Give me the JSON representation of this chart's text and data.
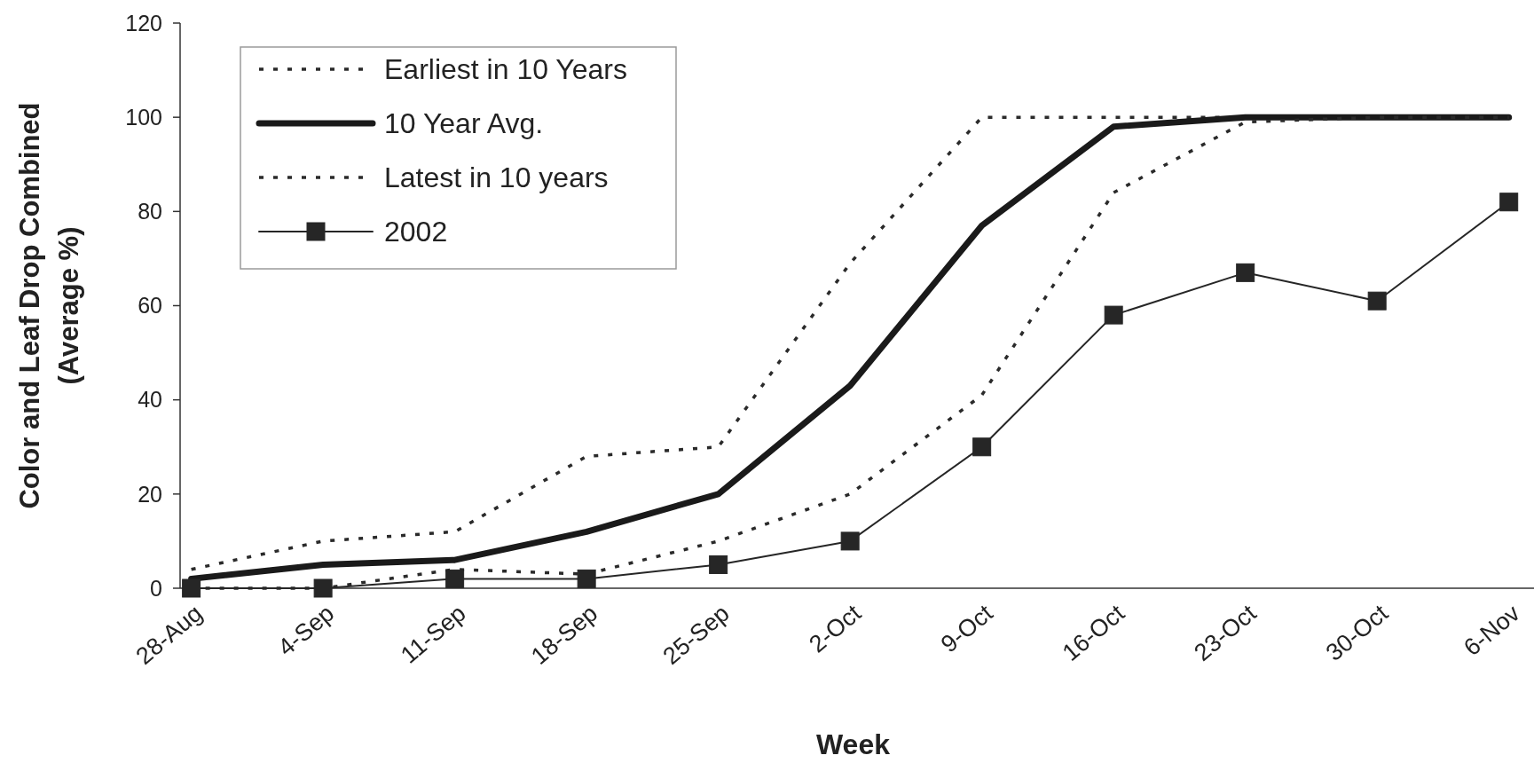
{
  "chart_data": {
    "type": "line",
    "xlabel": "Week",
    "ylabel": "Color and Leaf Drop Combined\n(Average %)",
    "categories": [
      "28-Aug",
      "4-Sep",
      "11-Sep",
      "18-Sep",
      "25-Sep",
      "2-Oct",
      "9-Oct",
      "16-Oct",
      "23-Oct",
      "30-Oct",
      "6-Nov"
    ],
    "series": [
      {
        "name": "Earliest in 10 Years",
        "color": "#2a2a2a",
        "line_style": "dotted",
        "marker": "none",
        "values": [
          4,
          10,
          12,
          28,
          30,
          69,
          100,
          100,
          100,
          100,
          100
        ]
      },
      {
        "name": "10 Year Avg.",
        "color": "#1a1a1a",
        "line_style": "solid",
        "marker": "none",
        "values": [
          2,
          5,
          6,
          12,
          20,
          43,
          77,
          98,
          100,
          100,
          100
        ]
      },
      {
        "name": "Latest in 10 years",
        "color": "#2a2a2a",
        "line_style": "dotted",
        "marker": "none",
        "values": [
          0,
          0,
          4,
          3,
          10,
          20,
          41,
          84,
          99,
          100,
          100
        ]
      },
      {
        "name": "2002",
        "color": "#262626",
        "line_style": "solid",
        "marker": "square",
        "values": [
          0,
          0,
          2,
          2,
          5,
          10,
          30,
          58,
          67,
          61,
          82
        ]
      }
    ],
    "ylim": [
      0,
      120
    ],
    "yticks": [
      0,
      20,
      40,
      60,
      80,
      100,
      120
    ],
    "legend": "top left"
  }
}
